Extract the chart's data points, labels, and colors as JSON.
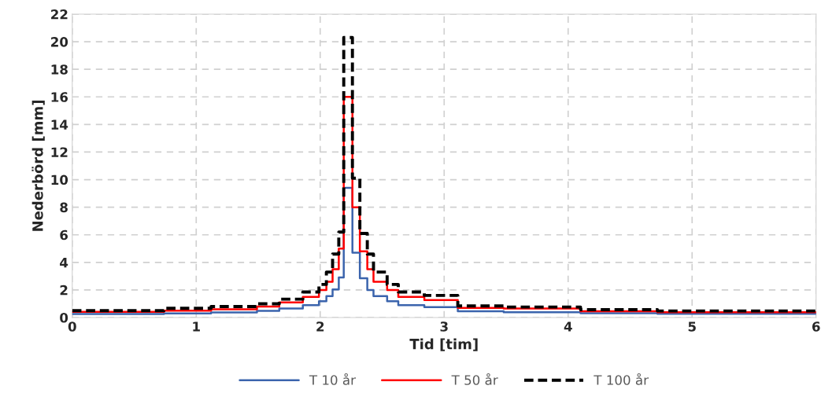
{
  "chart_data": {
    "type": "step",
    "xlabel": "Tid [tim]",
    "ylabel": "Nederbörd [mm]",
    "x": [
      0,
      0.74,
      1.12,
      1.49,
      1.67,
      1.86,
      1.99,
      2.05,
      2.1,
      2.15,
      2.19,
      2.26,
      2.32,
      2.38,
      2.43,
      2.54,
      2.63,
      2.84,
      3.11,
      3.48,
      4.1,
      4.72,
      6
    ],
    "series": [
      {
        "name": "T 10 år",
        "color": "#3b64ad",
        "line_style": "solid",
        "values": [
          0.25,
          0.3,
          0.37,
          0.48,
          0.65,
          0.9,
          1.18,
          1.56,
          2.04,
          2.9,
          9.4,
          4.7,
          2.85,
          2.0,
          1.56,
          1.18,
          0.9,
          0.75,
          0.46,
          0.39,
          0.32,
          0.27,
          0.27
        ]
      },
      {
        "name": "T 50 år",
        "color": "#ff0000",
        "line_style": "solid",
        "values": [
          0.42,
          0.5,
          0.6,
          0.8,
          1.1,
          1.5,
          2.0,
          2.6,
          3.5,
          5.0,
          16.0,
          8.0,
          4.8,
          3.5,
          2.6,
          2.0,
          1.5,
          1.27,
          0.7,
          0.65,
          0.46,
          0.39,
          0.39
        ]
      },
      {
        "name": "T 100 år",
        "color": "#000000",
        "line_style": "dashed",
        "values": [
          0.5,
          0.67,
          0.8,
          1.0,
          1.33,
          1.85,
          2.4,
          3.3,
          4.6,
          6.2,
          20.3,
          10.1,
          6.1,
          4.6,
          3.3,
          2.4,
          1.85,
          1.6,
          0.84,
          0.76,
          0.57,
          0.48,
          0.48
        ]
      }
    ],
    "xlim": [
      0,
      6
    ],
    "xticks": [
      0,
      1,
      2,
      3,
      4,
      5,
      6
    ],
    "ylim": [
      0,
      22
    ],
    "yticks": [
      0,
      2,
      4,
      6,
      8,
      10,
      12,
      14,
      16,
      18,
      20,
      22
    ],
    "grid": true,
    "legend": "bottom"
  }
}
